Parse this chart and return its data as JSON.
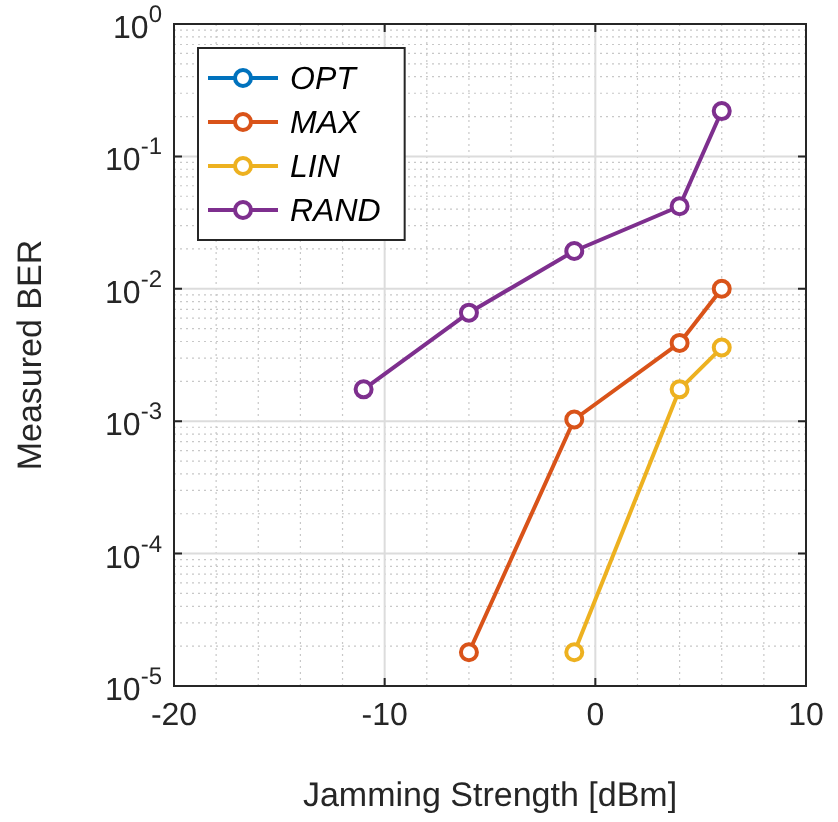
{
  "chart_data": {
    "type": "line",
    "xlabel": "Jamming Strength [dBm]",
    "ylabel": "Measured BER",
    "x": [
      -11,
      -6,
      -1,
      4,
      6
    ],
    "series": [
      {
        "name": "OPT",
        "color": "#0072bd",
        "values": [
          null,
          null,
          null,
          null,
          null
        ]
      },
      {
        "name": "MAX",
        "color": "#d95319",
        "values": [
          null,
          1.8e-05,
          0.00103,
          0.0039,
          0.01
        ]
      },
      {
        "name": "LIN",
        "color": "#edb120",
        "values": [
          null,
          null,
          1.8e-05,
          0.00174,
          0.0036
        ]
      },
      {
        "name": "RAND",
        "color": "#7e2f8e",
        "values": [
          0.00174,
          0.0066,
          0.0193,
          0.042,
          0.22
        ]
      }
    ],
    "xlim": [
      -20,
      10
    ],
    "xticks": [
      -20,
      -10,
      0,
      10
    ],
    "ylim": [
      1e-05,
      1
    ],
    "yticks": [
      {
        "value": 1e-05,
        "label": "10$^{-5}$"
      },
      {
        "value": 0.0001,
        "label": "10$^{-4}$"
      },
      {
        "value": 0.001,
        "label": "10$^{-3}$"
      },
      {
        "value": 0.01,
        "label": "10$^{-2}$"
      },
      {
        "value": 0.1,
        "label": "10$^{-1}$"
      },
      {
        "value": 1,
        "label": "10$^{0}$"
      }
    ],
    "log": "y",
    "grid": true,
    "legend": "top left",
    "marker": "circle",
    "line_style": "solid"
  }
}
